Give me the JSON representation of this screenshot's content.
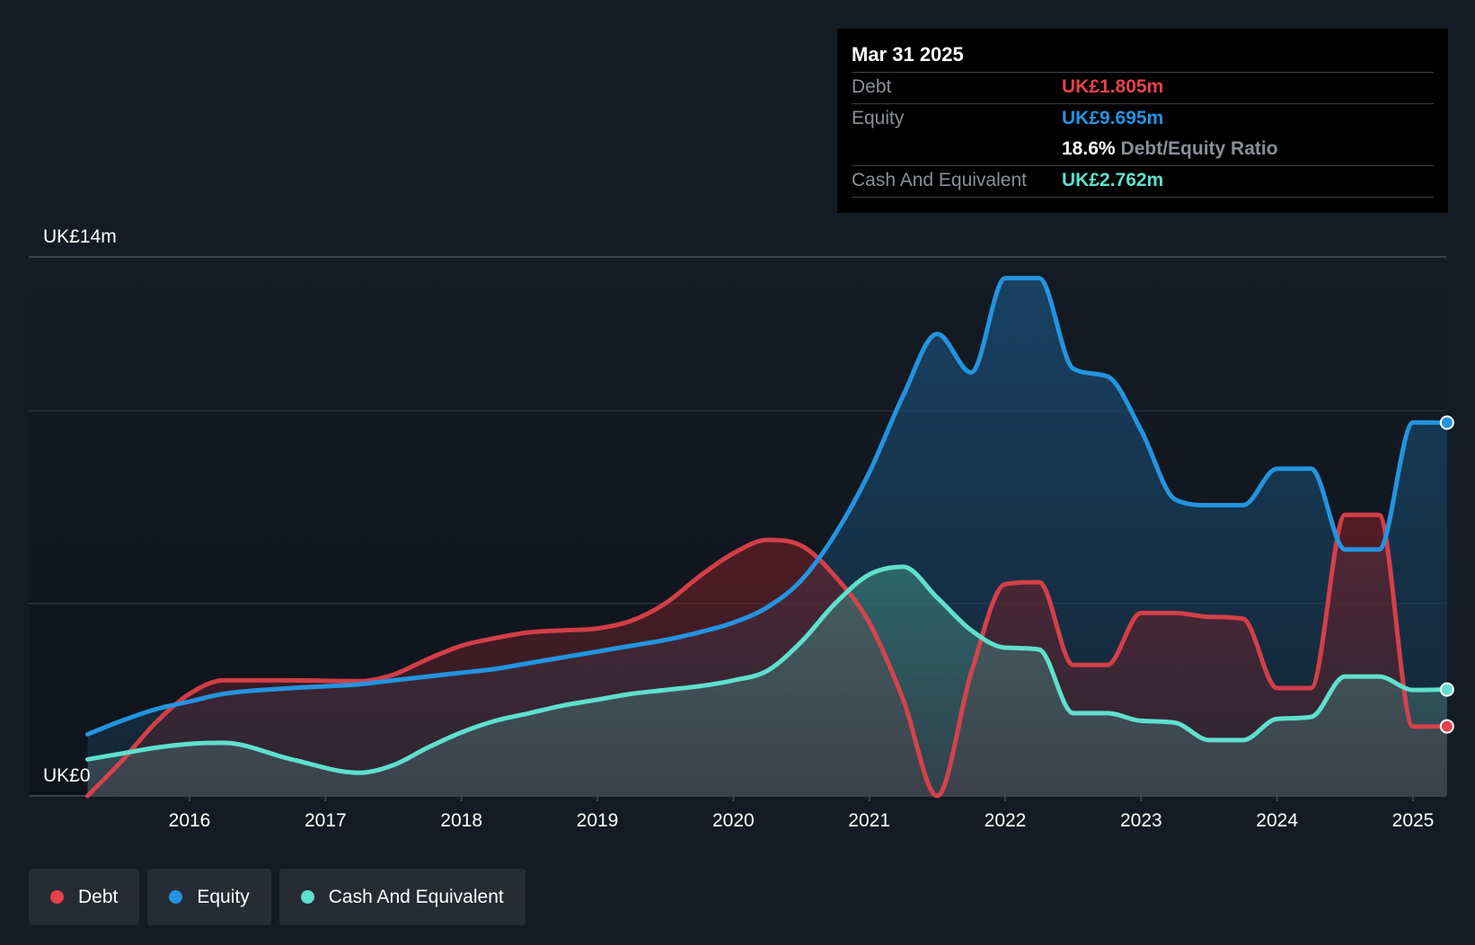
{
  "tooltip": {
    "date": "Mar 31 2025",
    "debt_label": "Debt",
    "debt_value": "UK£1.805m",
    "equity_label": "Equity",
    "equity_value": "UK£9.695m",
    "ratio_value": "18.6%",
    "ratio_label": "Debt/Equity Ratio",
    "cash_label": "Cash And Equivalent",
    "cash_value": "UK£2.762m"
  },
  "legend": [
    {
      "label": "Debt",
      "color": "#e5424b"
    },
    {
      "label": "Equity",
      "color": "#2394e0"
    },
    {
      "label": "Cash And Equivalent",
      "color": "#5fe0cc"
    }
  ],
  "chart_data": {
    "type": "area",
    "title": "",
    "xlabel": "",
    "ylabel": "",
    "y_top_label": "UK£14m",
    "y_bottom_label": "UK£0",
    "ylim": [
      0,
      14
    ],
    "xlim": [
      2015.25,
      2025.25
    ],
    "x_ticks": [
      "2016",
      "2017",
      "2018",
      "2019",
      "2020",
      "2021",
      "2022",
      "2023",
      "2024",
      "2025"
    ],
    "gridlines": [
      14,
      10,
      5
    ],
    "series": [
      {
        "name": "Debt",
        "color": "#e5424b",
        "x": [
          2015.25,
          2015.5,
          2015.75,
          2016.0,
          2016.25,
          2016.75,
          2017.25,
          2017.5,
          2017.75,
          2018.0,
          2018.25,
          2018.5,
          2018.75,
          2019.0,
          2019.25,
          2019.5,
          2019.75,
          2020.0,
          2020.25,
          2020.5,
          2020.75,
          2021.0,
          2021.25,
          2021.5,
          2021.75,
          2022.0,
          2022.25,
          2022.5,
          2022.75,
          2023.0,
          2023.25,
          2023.5,
          2023.75,
          2024.0,
          2024.25,
          2024.5,
          2024.75,
          2025.0,
          2025.25
        ],
        "values": [
          0.0,
          0.9,
          1.9,
          2.65,
          3.0,
          3.0,
          2.98,
          3.15,
          3.55,
          3.9,
          4.1,
          4.25,
          4.3,
          4.35,
          4.55,
          5.0,
          5.7,
          6.3,
          6.65,
          6.5,
          5.7,
          4.5,
          2.5,
          0.0,
          3.2,
          5.5,
          5.55,
          3.4,
          3.4,
          4.75,
          4.75,
          4.65,
          4.6,
          2.8,
          2.8,
          7.3,
          7.3,
          1.8,
          1.805
        ]
      },
      {
        "name": "Equity",
        "color": "#2394e0",
        "x": [
          2015.25,
          2015.5,
          2015.75,
          2016.0,
          2016.25,
          2016.75,
          2017.25,
          2017.5,
          2017.75,
          2018.0,
          2018.25,
          2018.5,
          2018.75,
          2019.0,
          2019.25,
          2019.5,
          2019.75,
          2020.0,
          2020.25,
          2020.5,
          2020.75,
          2021.0,
          2021.25,
          2021.5,
          2021.75,
          2022.0,
          2022.25,
          2022.5,
          2022.75,
          2023.0,
          2023.25,
          2023.5,
          2023.75,
          2024.0,
          2024.25,
          2024.5,
          2024.75,
          2025.0,
          2025.25
        ],
        "values": [
          1.6,
          1.95,
          2.25,
          2.45,
          2.65,
          2.8,
          2.9,
          3.0,
          3.1,
          3.2,
          3.3,
          3.45,
          3.6,
          3.75,
          3.9,
          4.05,
          4.25,
          4.5,
          4.9,
          5.6,
          6.8,
          8.4,
          10.4,
          12.0,
          11.0,
          13.45,
          13.45,
          11.1,
          10.9,
          9.5,
          7.7,
          7.55,
          7.55,
          8.5,
          8.5,
          6.4,
          6.4,
          9.7,
          9.695
        ]
      },
      {
        "name": "Cash And Equivalent",
        "color": "#5fe0cc",
        "x": [
          2015.25,
          2015.5,
          2015.75,
          2016.0,
          2016.25,
          2016.75,
          2017.25,
          2017.5,
          2017.75,
          2018.0,
          2018.25,
          2018.5,
          2018.75,
          2019.0,
          2019.25,
          2019.5,
          2019.75,
          2020.0,
          2020.25,
          2020.5,
          2020.75,
          2021.0,
          2021.25,
          2021.5,
          2021.75,
          2022.0,
          2022.25,
          2022.5,
          2022.75,
          2023.0,
          2023.25,
          2023.5,
          2023.75,
          2024.0,
          2024.25,
          2024.5,
          2024.75,
          2025.0,
          2025.25
        ],
        "values": [
          0.95,
          1.1,
          1.25,
          1.35,
          1.38,
          0.95,
          0.6,
          0.8,
          1.25,
          1.65,
          1.95,
          2.15,
          2.35,
          2.5,
          2.65,
          2.75,
          2.85,
          3.0,
          3.25,
          4.0,
          5.0,
          5.75,
          5.95,
          5.15,
          4.3,
          3.85,
          3.8,
          2.15,
          2.15,
          1.95,
          1.9,
          1.45,
          1.45,
          2.0,
          2.05,
          3.1,
          3.1,
          2.75,
          2.762
        ]
      }
    ]
  }
}
